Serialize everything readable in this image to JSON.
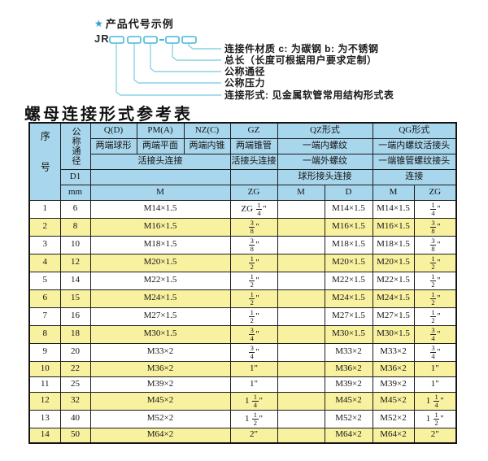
{
  "diagram": {
    "star_label": "产品代号示例",
    "code_prefix": "JR",
    "labels": [
      "连接件材质  c: 为碳钢  b: 为不锈钢",
      "总长（长度可根据用户要求定制）",
      "公称通径",
      "公称压力",
      "连接形式: 见金属软管常用结构形式表"
    ]
  },
  "table": {
    "title": "螺母连接形式参考表",
    "header": {
      "seq": "序号",
      "dn": "公称通径",
      "d1": "D1",
      "mm": "mm",
      "cols": {
        "qd": "Q(D)",
        "pma": "PM(A)",
        "nzc": "NZ(C)",
        "gz": "GZ",
        "qz": "QZ形式",
        "qg": "QG形式"
      },
      "sub": {
        "qd": "两端球形",
        "pma": "两端平面",
        "nzc": "两端内锥",
        "gz": "两端锥管",
        "qz": "一端内螺纹",
        "qg": "一端内螺纹活接头"
      },
      "row3": {
        "left": "活接头连接",
        "gz": "活接头连接",
        "qz": "一端外螺纹",
        "qg": "一端锥管螺纹接头"
      },
      "row4": {
        "qz": "球形接头连接",
        "qg": "连接"
      },
      "units": {
        "m": "M",
        "zg": "ZG",
        "qz_m": "M",
        "qz_d": "D",
        "qg_m": "M",
        "qg_zg": "ZG"
      }
    },
    "rows": [
      [
        "1",
        "6",
        "M14×1.5",
        "ZG 1/4\"",
        "",
        "M14×1.5",
        "M14×1.5",
        "1/4\""
      ],
      [
        "2",
        "8",
        "M16×1.5",
        "3/8\"",
        "",
        "M16×1.5",
        "M16×1.5",
        "3/8\""
      ],
      [
        "3",
        "10",
        "M18×1.5",
        "3/8\"",
        "",
        "M18×1.5",
        "M18×1.5",
        "3/8\""
      ],
      [
        "4",
        "12",
        "M20×1.5",
        "1/2\"",
        "",
        "M20×1.5",
        "M20×1.5",
        "1/2\""
      ],
      [
        "5",
        "14",
        "M22×1.5",
        "1/2\"",
        "",
        "M22×1.5",
        "M22×1.5",
        "1/2\""
      ],
      [
        "6",
        "15",
        "M24×1.5",
        "1/2\"",
        "",
        "M24×1.5",
        "M24×1.5",
        "1/2\""
      ],
      [
        "7",
        "16",
        "M27×1.5",
        "1/2\"",
        "",
        "M27×1.5",
        "M27×1.5",
        "1/2\""
      ],
      [
        "8",
        "18",
        "M30×1.5",
        "3/4\"",
        "",
        "M30×1.5",
        "M30×1.5",
        "3/4\""
      ],
      [
        "9",
        "20",
        "M33×2",
        "3/4\"",
        "",
        "M33×2",
        "M33×2",
        "3/4\""
      ],
      [
        "10",
        "22",
        "M36×2",
        "1\"",
        "",
        "M36×2",
        "M36×2",
        "1\""
      ],
      [
        "11",
        "25",
        "M39×2",
        "1\"",
        "",
        "M39×2",
        "M39×2",
        "1\""
      ],
      [
        "12",
        "32",
        "M45×2",
        "1 1/4\"",
        "",
        "M45×2",
        "M45×2",
        "1 1/4\""
      ],
      [
        "13",
        "40",
        "M52×2",
        "1 1/2\"",
        "",
        "M52×2",
        "M52×2",
        "1 1/2\""
      ],
      [
        "14",
        "50",
        "M64×2",
        "2\"",
        "",
        "M64×2",
        "M64×2",
        "2\""
      ]
    ],
    "colors": {
      "header_bg": "#a8d6ec",
      "row_alt_bg": "#f8f1a0",
      "border": "#1d1d1d",
      "accent_star": "#2f9fd2",
      "box_stroke": "#46b8d8",
      "line": "#8cd4e6"
    }
  }
}
